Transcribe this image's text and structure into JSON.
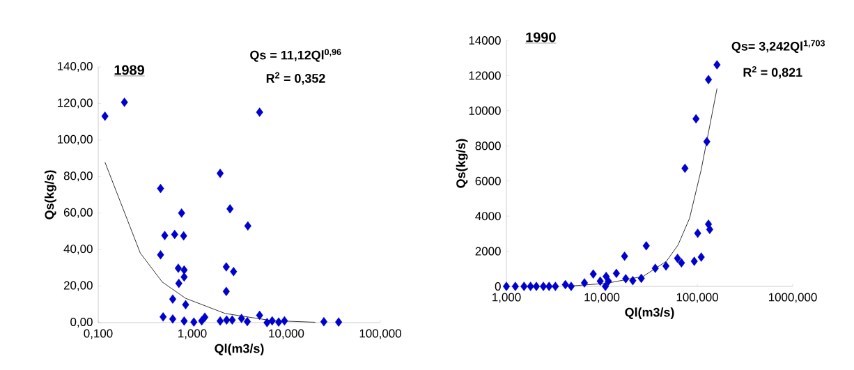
{
  "chart_data": [
    {
      "type": "scatter",
      "title": "1989",
      "xlabel": "Ql(m3/s)",
      "ylabel": "Qs(kg/s)",
      "log": "x",
      "marker": "diamond",
      "annotations": [
        "Qs = 11,12Ql$^{0,96}$",
        "R$^{2}$ = 0,352"
      ],
      "xlim": [
        0.1,
        100
      ],
      "ylim": [
        0,
        140
      ],
      "xticks": [
        {
          "value": 0.1,
          "label": "0,100"
        },
        {
          "value": 1,
          "label": "1,000"
        },
        {
          "value": 10,
          "label": "10,000"
        },
        {
          "value": 100,
          "label": "100,000"
        }
      ],
      "yticks": [
        {
          "value": 0,
          "label": "0,00"
        },
        {
          "value": 20,
          "label": "20,00"
        },
        {
          "value": 40,
          "label": "40,00"
        },
        {
          "value": 60,
          "label": "60,00"
        },
        {
          "value": 80,
          "label": "80,00"
        },
        {
          "value": 100,
          "label": "100,00"
        },
        {
          "value": 120,
          "label": "120,00"
        },
        {
          "value": 140,
          "label": "140,00"
        }
      ],
      "series": [
        {
          "color": "#0000cc",
          "x": [
            0.118,
            0.19,
            5.2,
            1.98,
            0.46,
            2.52,
            0.77,
            3.9,
            0.51,
            0.65,
            0.81,
            0.46,
            0.71,
            0.82,
            2.3,
            2.75,
            0.82,
            0.72,
            2.3,
            0.62,
            0.85,
            0.49,
            0.62,
            0.82,
            1.04,
            1.26,
            1.36,
            1.98,
            2.32,
            2.66,
            3.34,
            3.85,
            5.2,
            6.24,
            7.08,
            8.3,
            9.56,
            25.1,
            36
          ],
          "values": [
            113,
            120.6,
            115.2,
            81.7,
            73.4,
            62.3,
            60,
            52.9,
            47.7,
            48.3,
            47.5,
            37.1,
            29.8,
            28.8,
            30.5,
            27.9,
            25,
            21.5,
            17.1,
            12.9,
            9.8,
            3.1,
            2,
            0.9,
            0.3,
            1,
            3,
            0.9,
            1.4,
            1.4,
            2.3,
            0.6,
            4,
            0,
            1,
            0.3,
            1,
            0.5,
            0.3
          ]
        },
        {
          "type": "line",
          "color": "#000000",
          "marker": "none",
          "x": [
            0.118,
            0.28,
            0.48,
            0.85,
            2.24,
            7.0,
            20.4
          ],
          "values": [
            87.8,
            38.1,
            22.2,
            13.3,
            5.0,
            1.1,
            0.2
          ]
        }
      ]
    },
    {
      "type": "scatter",
      "title": "1990",
      "xlabel": "Ql(m3/s)",
      "ylabel": "Qs(kg/s)",
      "log": "x",
      "marker": "diamond",
      "annotations": [
        "Qs= 3,242Ql$^{1,703}$",
        "R$^{2}$ = 0,821"
      ],
      "xlim": [
        1,
        1000
      ],
      "ylim": [
        0,
        14000
      ],
      "xticks": [
        {
          "value": 1,
          "label": "1,000"
        },
        {
          "value": 10,
          "label": "10,000"
        },
        {
          "value": 100,
          "label": "100,000"
        },
        {
          "value": 1000,
          "label": "1000,000"
        }
      ],
      "yticks": [
        0,
        2000,
        4000,
        6000,
        8000,
        10000,
        12000,
        14000
      ],
      "series": [
        {
          "color": "#0000cc",
          "x": [
            1.0,
            1.24,
            1.53,
            1.79,
            2.06,
            2.44,
            2.8,
            3.26,
            4.15,
            4.77,
            6.57,
            8.13,
            9.62,
            11.1,
            11.7,
            10.9,
            14.2,
            17.3,
            17.8,
            21.1,
            25.9,
            29.2,
            36.3,
            47,
            62.1,
            68.3,
            74.3,
            93,
            110,
            101,
            97,
            126,
            131,
            135,
            131,
            161
          ],
          "values": [
            0,
            0,
            0,
            0,
            0,
            0,
            0,
            0,
            100,
            0,
            200,
            700,
            300,
            570,
            300,
            0,
            740,
            1720,
            440,
            330,
            460,
            2310,
            1030,
            1160,
            1600,
            1340,
            6720,
            1430,
            1670,
            3020,
            9540,
            8240,
            3540,
            3240,
            11770,
            12610
          ]
        },
        {
          "type": "line",
          "color": "#000000",
          "marker": "none",
          "x": [
            4.04,
            11.1,
            27.1,
            47.5,
            62.8,
            83.1,
            110,
            134,
            161
          ],
          "values": [
            0,
            170,
            570,
            1430,
            2350,
            3880,
            6650,
            9040,
            11260
          ]
        }
      ]
    }
  ]
}
